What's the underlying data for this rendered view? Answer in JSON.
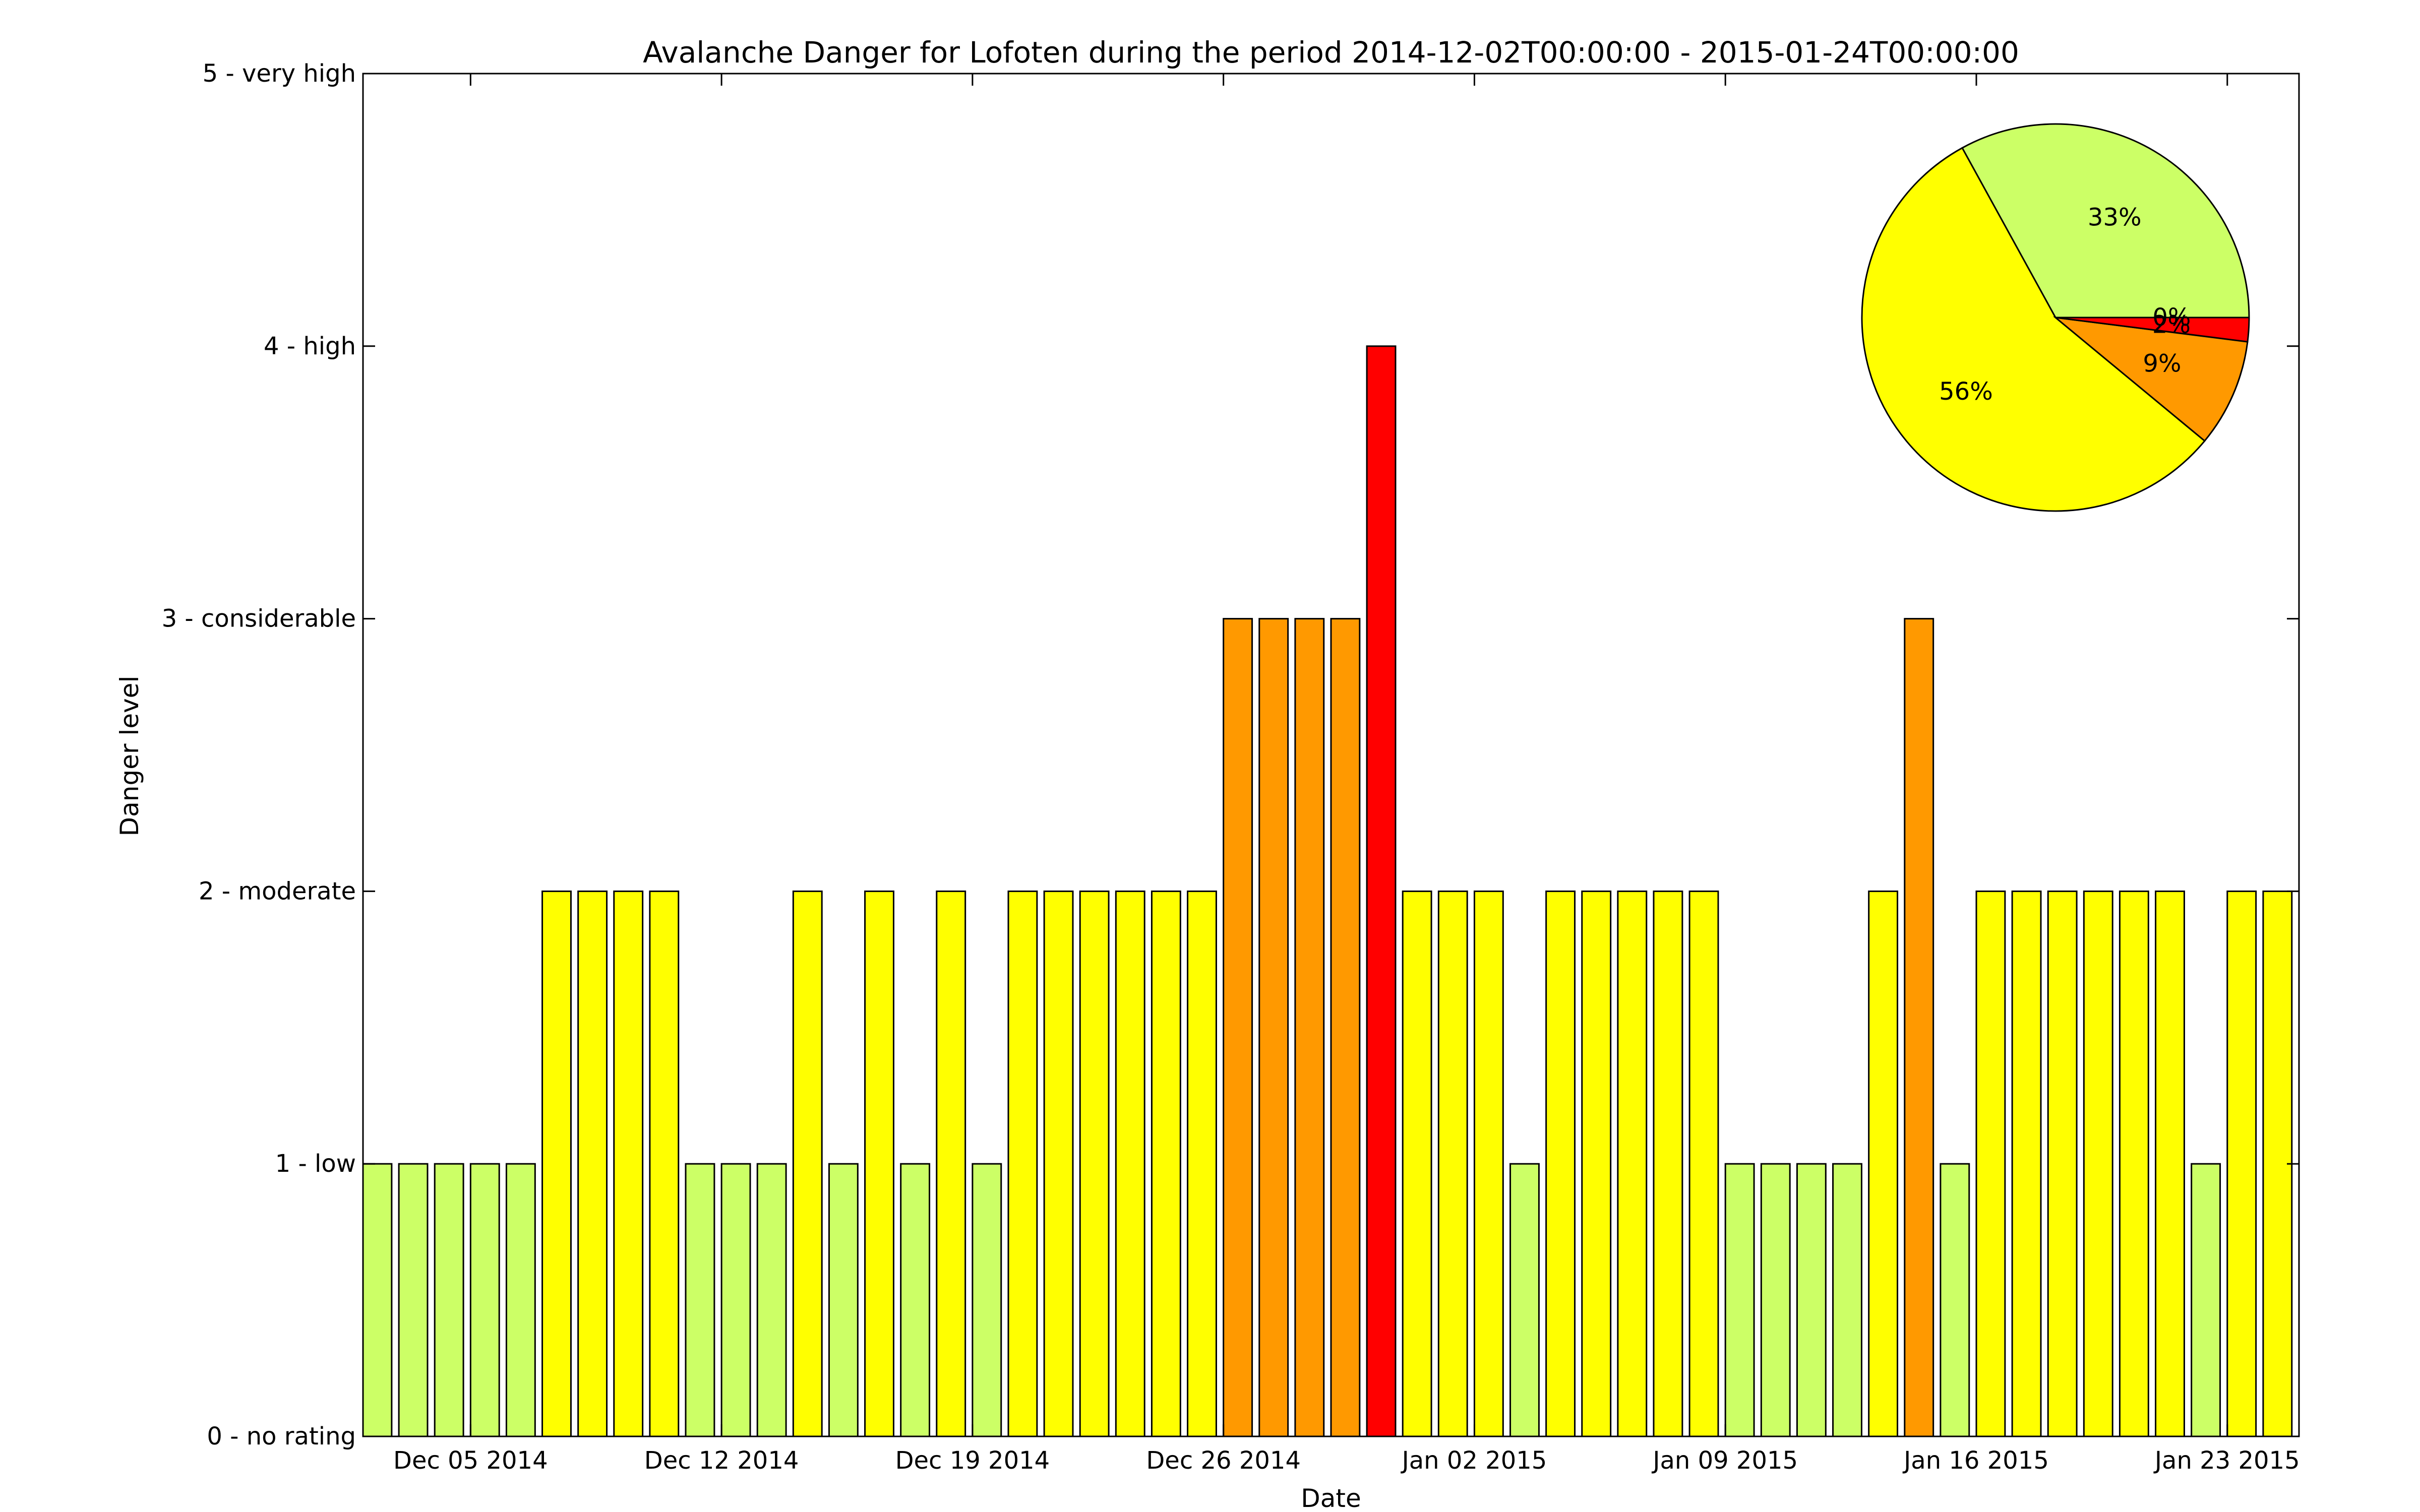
{
  "chart_data": [
    {
      "type": "bar",
      "title": "Avalanche Danger for Lofoten during the period 2014-12-02T00:00:00 - 2015-01-24T00:00:00",
      "xlabel": "Date",
      "ylabel": "Danger level",
      "ylim": [
        0,
        5
      ],
      "yticks": [
        {
          "value": 0,
          "label": "0 - no rating"
        },
        {
          "value": 1,
          "label": "1 - low"
        },
        {
          "value": 2,
          "label": "2 - moderate"
        },
        {
          "value": 3,
          "label": "3 - considerable"
        },
        {
          "value": 4,
          "label": "4 - high"
        },
        {
          "value": 5,
          "label": "5 - very high"
        }
      ],
      "xticks": [
        {
          "date": "2014-12-05",
          "label": "Dec 05 2014"
        },
        {
          "date": "2014-12-12",
          "label": "Dec 12 2014"
        },
        {
          "date": "2014-12-19",
          "label": "Dec 19 2014"
        },
        {
          "date": "2014-12-26",
          "label": "Dec 26 2014"
        },
        {
          "date": "2015-01-02",
          "label": "Jan 02 2015"
        },
        {
          "date": "2015-01-09",
          "label": "Jan 09 2015"
        },
        {
          "date": "2015-01-16",
          "label": "Jan 16 2015"
        },
        {
          "date": "2015-01-23",
          "label": "Jan 23 2015"
        }
      ],
      "x": [
        "2014-12-02",
        "2014-12-03",
        "2014-12-04",
        "2014-12-05",
        "2014-12-06",
        "2014-12-07",
        "2014-12-08",
        "2014-12-09",
        "2014-12-10",
        "2014-12-11",
        "2014-12-12",
        "2014-12-13",
        "2014-12-14",
        "2014-12-15",
        "2014-12-16",
        "2014-12-17",
        "2014-12-18",
        "2014-12-19",
        "2014-12-20",
        "2014-12-21",
        "2014-12-22",
        "2014-12-23",
        "2014-12-24",
        "2014-12-25",
        "2014-12-26",
        "2014-12-27",
        "2014-12-28",
        "2014-12-29",
        "2014-12-30",
        "2014-12-31",
        "2015-01-01",
        "2015-01-02",
        "2015-01-03",
        "2015-01-04",
        "2015-01-05",
        "2015-01-06",
        "2015-01-07",
        "2015-01-08",
        "2015-01-09",
        "2015-01-10",
        "2015-01-11",
        "2015-01-12",
        "2015-01-13",
        "2015-01-14",
        "2015-01-15",
        "2015-01-16",
        "2015-01-17",
        "2015-01-18",
        "2015-01-19",
        "2015-01-20",
        "2015-01-21",
        "2015-01-22",
        "2015-01-23",
        "2015-01-24"
      ],
      "values": [
        1,
        1,
        1,
        1,
        1,
        2,
        2,
        2,
        2,
        1,
        1,
        1,
        2,
        1,
        2,
        1,
        2,
        1,
        2,
        2,
        2,
        2,
        2,
        2,
        3,
        3,
        3,
        3,
        4,
        2,
        2,
        2,
        1,
        2,
        2,
        2,
        2,
        2,
        1,
        1,
        1,
        1,
        2,
        3,
        1,
        2,
        2,
        2,
        2,
        2,
        2,
        1,
        2,
        2
      ],
      "level_colors": {
        "1": "#ccff66",
        "2": "#ffff00",
        "3": "#ff9900",
        "4": "#ff0000",
        "5": "#000000"
      },
      "grid": false
    },
    {
      "type": "pie",
      "slices": [
        {
          "label": "33%",
          "value": 33,
          "color": "#ccff66"
        },
        {
          "label": "56%",
          "value": 56,
          "color": "#ffff00"
        },
        {
          "label": "9%",
          "value": 9,
          "color": "#ff9900"
        },
        {
          "label": "2%",
          "value": 2,
          "color": "#ff0000"
        },
        {
          "label": "0%",
          "value": 0,
          "color": "#000000"
        }
      ],
      "placement": "top-right inset"
    }
  ]
}
